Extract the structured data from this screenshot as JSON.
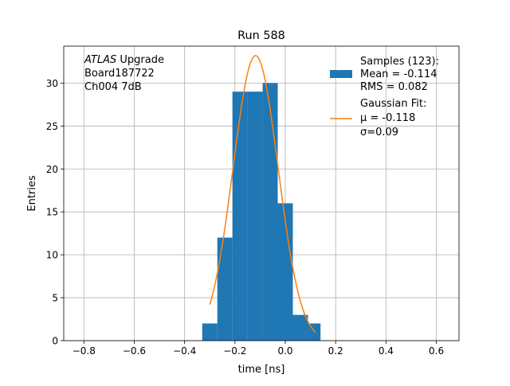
{
  "chart_data": {
    "type": "bar",
    "title": "Run 588",
    "xlabel": "time [ns]",
    "ylabel": "Entries",
    "xlim": [
      -0.88,
      0.69
    ],
    "ylim": [
      0,
      34.3
    ],
    "grid": true,
    "xticks": [
      -0.8,
      -0.6,
      -0.4,
      -0.2,
      0.0,
      0.2,
      0.4,
      0.6
    ],
    "xtick_labels": [
      "−0.8",
      "−0.6",
      "−0.4",
      "−0.2",
      "0.0",
      "0.2",
      "0.4",
      "0.6"
    ],
    "yticks": [
      0,
      5,
      10,
      15,
      20,
      25,
      30
    ],
    "ytick_labels": [
      "0",
      "5",
      "10",
      "15",
      "20",
      "25",
      "30"
    ],
    "annotation": {
      "italic": "ATLAS",
      "line1_rest": " Upgrade",
      "line2": " Board187722",
      "line3": " Ch004 7dB"
    },
    "legend_position": "top-right",
    "histogram": {
      "name": "Samples (123):",
      "color": "#1f77b4",
      "bin_edges": [
        -0.33,
        -0.27,
        -0.21,
        -0.15,
        -0.09,
        -0.03,
        0.03,
        0.09,
        0.14
      ],
      "counts": [
        2,
        12,
        29,
        29,
        30,
        16,
        3,
        2
      ],
      "stats_lines": [
        " Mean = -0.114",
        " RMS = 0.082"
      ]
    },
    "fit": {
      "name": "Gaussian Fit:",
      "color": "#ff7f0e",
      "mu_label": " μ = -0.118",
      "sigma_label": " σ=0.09",
      "mu": -0.118,
      "sigma": 0.0895,
      "amplitude": 33.2,
      "x_range": [
        -0.3,
        0.12
      ]
    }
  }
}
